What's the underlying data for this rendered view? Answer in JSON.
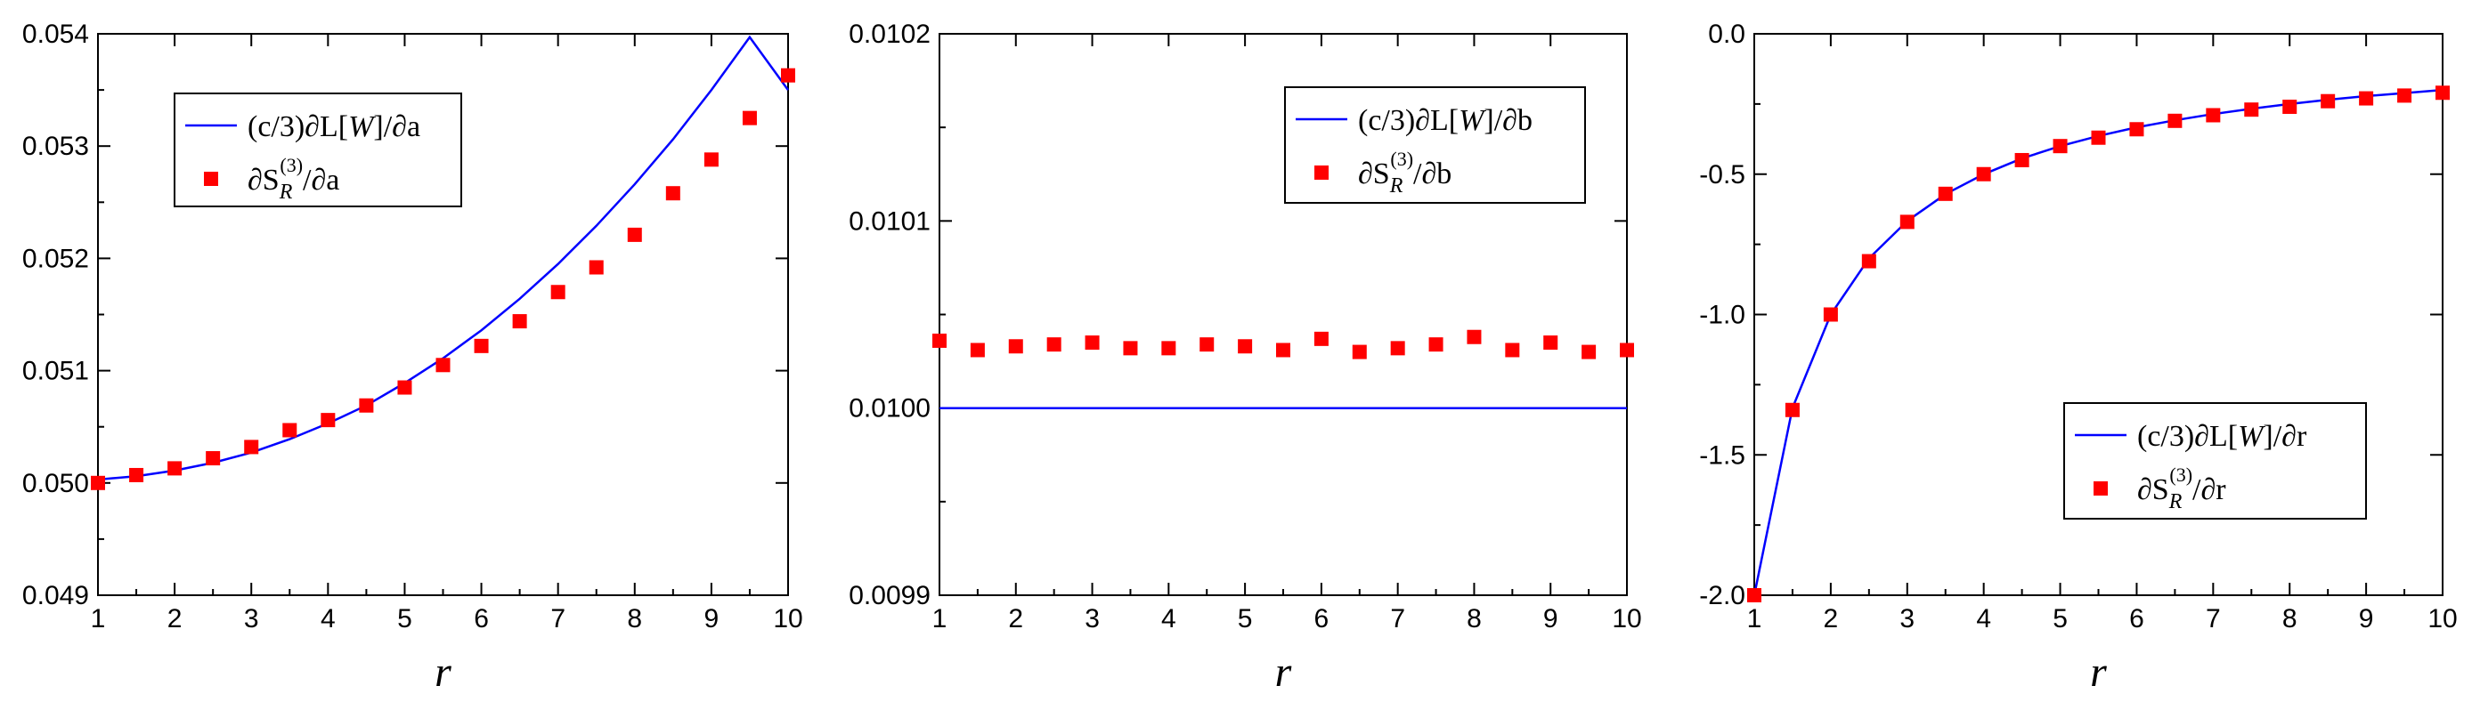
{
  "colors": {
    "line": "#0000ff",
    "marker": "#ff0000",
    "axis": "#000000"
  },
  "chart_data": [
    {
      "type": "line",
      "xlabel": "r",
      "ylabel": "",
      "xlim": [
        1,
        10
      ],
      "ylim": [
        0.049,
        0.054
      ],
      "xticks": [
        "1",
        "2",
        "3",
        "4",
        "5",
        "6",
        "7",
        "8",
        "9",
        "10"
      ],
      "yticks": [
        "0.049",
        "0.050",
        "0.051",
        "0.052",
        "0.053",
        "0.054"
      ],
      "legend_position": "top-left",
      "legend": {
        "line_prefix": "(c/3)∂L[",
        "line_script": "W",
        "line_suffix": "]/∂a",
        "marker_prefix": "∂S",
        "marker_sub": "R",
        "marker_sup": "(3)",
        "marker_suffix": "/∂a"
      },
      "series": [
        {
          "name": "(c/3)∂L[W]/∂a",
          "style": "line",
          "x": [
            1,
            1.5,
            2,
            2.5,
            3,
            3.5,
            4,
            4.5,
            5,
            5.5,
            6,
            6.5,
            7,
            7.5,
            8,
            8.5,
            9,
            9.5,
            10
          ],
          "y": [
            0.05003,
            0.05006,
            0.05011,
            0.05018,
            0.05027,
            0.05039,
            0.05053,
            0.05069,
            0.05089,
            0.05111,
            0.05136,
            0.05164,
            0.05195,
            0.05229,
            0.05266,
            0.05306,
            0.0535,
            0.05397,
            0.0535
          ]
        },
        {
          "name": "∂S_R^(3)/∂a",
          "style": "marker",
          "x": [
            1,
            1.5,
            2,
            2.5,
            3,
            3.5,
            4,
            4.5,
            5,
            5.5,
            6,
            6.5,
            7,
            7.5,
            8,
            8.5,
            9,
            9.5,
            10
          ],
          "y": [
            0.05,
            0.05007,
            0.05013,
            0.05022,
            0.05032,
            0.05047,
            0.05056,
            0.05069,
            0.05085,
            0.05105,
            0.05122,
            0.05144,
            0.0517,
            0.05192,
            0.05221,
            0.05258,
            0.05288,
            0.05325,
            0.05363
          ]
        }
      ]
    },
    {
      "type": "line",
      "xlabel": "r",
      "ylabel": "",
      "xlim": [
        1,
        10
      ],
      "ylim": [
        0.0099,
        0.0102
      ],
      "xticks": [
        "1",
        "2",
        "3",
        "4",
        "5",
        "6",
        "7",
        "8",
        "9",
        "10"
      ],
      "yticks": [
        "0.0099",
        "0.0100",
        "0.0101",
        "0.0102"
      ],
      "legend_position": "top-right",
      "legend": {
        "line_prefix": "(c/3)∂L[",
        "line_script": "W",
        "line_suffix": "]/∂b",
        "marker_prefix": "∂S",
        "marker_sub": "R",
        "marker_sup": "(3)",
        "marker_suffix": "/∂b"
      },
      "series": [
        {
          "name": "(c/3)∂L[W]/∂b",
          "style": "line",
          "x": [
            1,
            10
          ],
          "y": [
            0.01,
            0.01
          ]
        },
        {
          "name": "∂S_R^(3)/∂b",
          "style": "marker",
          "x": [
            1,
            1.5,
            2,
            2.5,
            3,
            3.5,
            4,
            4.5,
            5,
            5.5,
            6,
            6.5,
            7,
            7.5,
            8,
            8.5,
            9,
            9.5,
            10
          ],
          "y": [
            0.010036,
            0.010031,
            0.010033,
            0.010034,
            0.010035,
            0.010032,
            0.010032,
            0.010034,
            0.010033,
            0.010031,
            0.010037,
            0.01003,
            0.010032,
            0.010034,
            0.010038,
            0.010031,
            0.010035,
            0.01003,
            0.010031
          ]
        }
      ]
    },
    {
      "type": "line",
      "xlabel": "r",
      "ylabel": "",
      "xlim": [
        1,
        10
      ],
      "ylim": [
        -2.0,
        0.0
      ],
      "xticks": [
        "1",
        "2",
        "3",
        "4",
        "5",
        "6",
        "7",
        "8",
        "9",
        "10"
      ],
      "yticks": [
        "-2.0",
        "-1.5",
        "-1.0",
        "-0.5",
        "0.0"
      ],
      "legend_position": "bottom-right",
      "legend": {
        "line_prefix": "(c/3)∂L[",
        "line_script": "W",
        "line_suffix": "]/∂r",
        "marker_prefix": "∂S",
        "marker_sub": "R",
        "marker_sup": "(3)",
        "marker_suffix": "/∂r"
      },
      "series": [
        {
          "name": "(c/3)∂L[W]/∂r",
          "style": "line",
          "x": [
            1,
            1.5,
            2,
            2.5,
            3,
            3.5,
            4,
            4.5,
            5,
            5.5,
            6,
            6.5,
            7,
            7.5,
            8,
            8.5,
            9,
            9.5,
            10
          ],
          "y": [
            -2.0,
            -1.333,
            -1.0,
            -0.8,
            -0.667,
            -0.571,
            -0.5,
            -0.444,
            -0.4,
            -0.364,
            -0.333,
            -0.308,
            -0.286,
            -0.267,
            -0.25,
            -0.235,
            -0.222,
            -0.211,
            -0.2
          ]
        },
        {
          "name": "∂S_R^(3)/∂r",
          "style": "marker",
          "x": [
            1,
            1.5,
            2,
            2.5,
            3,
            3.5,
            4,
            4.5,
            5,
            5.5,
            6,
            6.5,
            7,
            7.5,
            8,
            8.5,
            9,
            9.5,
            10
          ],
          "y": [
            -2.0,
            -1.34,
            -1.0,
            -0.81,
            -0.67,
            -0.57,
            -0.5,
            -0.45,
            -0.4,
            -0.37,
            -0.34,
            -0.31,
            -0.29,
            -0.27,
            -0.26,
            -0.24,
            -0.23,
            -0.22,
            -0.21
          ]
        }
      ]
    }
  ]
}
